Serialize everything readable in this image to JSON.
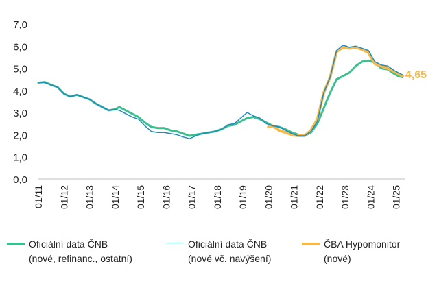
{
  "chart_data": {
    "type": "line",
    "title": "",
    "xlabel": "",
    "ylabel": "",
    "ylim": [
      0,
      7
    ],
    "y_ticks": [
      "0,0",
      "1,0",
      "2,0",
      "3,0",
      "4,0",
      "5,0",
      "6,0",
      "7,0"
    ],
    "x_ticks": [
      "01/11",
      "01/12",
      "01/13",
      "01/14",
      "01/15",
      "01/16",
      "01/17",
      "01/18",
      "01/19",
      "01/20",
      "01/21",
      "01/22",
      "01/23",
      "01/24",
      "01/25"
    ],
    "xlim": [
      "2011-01",
      "2025-05"
    ],
    "grid": false,
    "legend_position": "bottom",
    "end_label": "4,65",
    "series": [
      {
        "name": "Oficiální data ČNB (nové, refinanc., ostatní)",
        "color": "#3cbf8e",
        "points": [
          [
            "2011-01",
            4.35
          ],
          [
            "2011-04",
            4.38
          ],
          [
            "2011-07",
            4.25
          ],
          [
            "2011-10",
            4.15
          ],
          [
            "2012-01",
            3.85
          ],
          [
            "2012-04",
            3.72
          ],
          [
            "2012-07",
            3.8
          ],
          [
            "2012-10",
            3.7
          ],
          [
            "2013-01",
            3.6
          ],
          [
            "2013-04",
            3.4
          ],
          [
            "2013-07",
            3.25
          ],
          [
            "2013-10",
            3.1
          ],
          [
            "2014-01",
            3.15
          ],
          [
            "2014-03",
            3.25
          ],
          [
            "2014-06",
            3.1
          ],
          [
            "2014-09",
            2.95
          ],
          [
            "2014-12",
            2.8
          ],
          [
            "2015-03",
            2.55
          ],
          [
            "2015-06",
            2.35
          ],
          [
            "2015-09",
            2.3
          ],
          [
            "2015-12",
            2.3
          ],
          [
            "2016-03",
            2.2
          ],
          [
            "2016-06",
            2.15
          ],
          [
            "2016-09",
            2.05
          ],
          [
            "2016-12",
            1.95
          ],
          [
            "2017-03",
            2.0
          ],
          [
            "2017-06",
            2.05
          ],
          [
            "2017-09",
            2.1
          ],
          [
            "2017-12",
            2.15
          ],
          [
            "2018-03",
            2.25
          ],
          [
            "2018-06",
            2.4
          ],
          [
            "2018-09",
            2.45
          ],
          [
            "2018-12",
            2.6
          ],
          [
            "2019-03",
            2.75
          ],
          [
            "2019-06",
            2.8
          ],
          [
            "2019-09",
            2.7
          ],
          [
            "2019-12",
            2.55
          ],
          [
            "2020-03",
            2.4
          ],
          [
            "2020-06",
            2.35
          ],
          [
            "2020-09",
            2.25
          ],
          [
            "2020-12",
            2.1
          ],
          [
            "2021-03",
            2.0
          ],
          [
            "2021-06",
            1.95
          ],
          [
            "2021-09",
            2.1
          ],
          [
            "2021-12",
            2.5
          ],
          [
            "2022-03",
            3.2
          ],
          [
            "2022-06",
            3.9
          ],
          [
            "2022-09",
            4.5
          ],
          [
            "2022-12",
            4.65
          ],
          [
            "2023-03",
            4.8
          ],
          [
            "2023-06",
            5.1
          ],
          [
            "2023-09",
            5.3
          ],
          [
            "2023-12",
            5.35
          ],
          [
            "2024-03",
            5.25
          ],
          [
            "2024-06",
            5.0
          ],
          [
            "2024-09",
            4.95
          ],
          [
            "2024-12",
            4.75
          ],
          [
            "2025-02",
            4.65
          ],
          [
            "2025-04",
            4.6
          ]
        ]
      },
      {
        "name": "Oficiální data ČNB (nové vč. navýšení)",
        "color": "#1e8bc3",
        "points": [
          [
            "2011-01",
            4.38
          ],
          [
            "2011-04",
            4.35
          ],
          [
            "2011-07",
            4.25
          ],
          [
            "2011-10",
            4.15
          ],
          [
            "2012-01",
            3.85
          ],
          [
            "2012-04",
            3.72
          ],
          [
            "2012-07",
            3.8
          ],
          [
            "2012-10",
            3.7
          ],
          [
            "2013-01",
            3.6
          ],
          [
            "2013-04",
            3.4
          ],
          [
            "2013-07",
            3.25
          ],
          [
            "2013-10",
            3.1
          ],
          [
            "2014-01",
            3.15
          ],
          [
            "2014-03",
            3.1
          ],
          [
            "2014-06",
            2.95
          ],
          [
            "2014-09",
            2.8
          ],
          [
            "2014-12",
            2.7
          ],
          [
            "2015-03",
            2.4
          ],
          [
            "2015-06",
            2.15
          ],
          [
            "2015-09",
            2.1
          ],
          [
            "2015-12",
            2.1
          ],
          [
            "2016-03",
            2.05
          ],
          [
            "2016-06",
            2.0
          ],
          [
            "2016-09",
            1.9
          ],
          [
            "2016-12",
            1.82
          ],
          [
            "2017-03",
            1.95
          ],
          [
            "2017-06",
            2.05
          ],
          [
            "2017-09",
            2.1
          ],
          [
            "2017-12",
            2.15
          ],
          [
            "2018-03",
            2.25
          ],
          [
            "2018-06",
            2.45
          ],
          [
            "2018-09",
            2.5
          ],
          [
            "2018-12",
            2.75
          ],
          [
            "2019-03",
            3.0
          ],
          [
            "2019-06",
            2.85
          ],
          [
            "2019-09",
            2.75
          ],
          [
            "2019-12",
            2.5
          ],
          [
            "2020-03",
            2.4
          ],
          [
            "2020-06",
            2.35
          ],
          [
            "2020-09",
            2.2
          ],
          [
            "2020-12",
            2.05
          ],
          [
            "2021-03",
            1.95
          ],
          [
            "2021-06",
            1.95
          ],
          [
            "2021-09",
            2.15
          ],
          [
            "2021-12",
            2.6
          ],
          [
            "2022-03",
            3.9
          ],
          [
            "2022-06",
            4.6
          ],
          [
            "2022-09",
            5.8
          ],
          [
            "2022-12",
            6.05
          ],
          [
            "2023-03",
            5.95
          ],
          [
            "2023-06",
            6.0
          ],
          [
            "2023-09",
            5.9
          ],
          [
            "2023-12",
            5.8
          ],
          [
            "2024-03",
            5.3
          ],
          [
            "2024-06",
            5.15
          ],
          [
            "2024-09",
            5.1
          ],
          [
            "2024-12",
            4.9
          ],
          [
            "2025-02",
            4.8
          ],
          [
            "2025-04",
            4.7
          ]
        ]
      },
      {
        "name": "ČBA Hypomonitor (nové)",
        "color": "#f5b84a",
        "points": [
          [
            "2020-01",
            2.35
          ],
          [
            "2020-03",
            2.4
          ],
          [
            "2020-06",
            2.2
          ],
          [
            "2020-09",
            2.1
          ],
          [
            "2020-12",
            2.0
          ],
          [
            "2021-03",
            1.95
          ],
          [
            "2021-06",
            1.95
          ],
          [
            "2021-09",
            2.2
          ],
          [
            "2021-12",
            2.7
          ],
          [
            "2022-03",
            3.9
          ],
          [
            "2022-06",
            4.6
          ],
          [
            "2022-09",
            5.75
          ],
          [
            "2022-12",
            5.95
          ],
          [
            "2023-03",
            5.9
          ],
          [
            "2023-06",
            5.95
          ],
          [
            "2023-09",
            5.85
          ],
          [
            "2023-12",
            5.7
          ],
          [
            "2024-03",
            5.2
          ],
          [
            "2024-06",
            5.1
          ],
          [
            "2024-09",
            5.0
          ],
          [
            "2024-12",
            4.85
          ],
          [
            "2025-02",
            4.75
          ],
          [
            "2025-04",
            4.65
          ]
        ]
      }
    ]
  },
  "legend": {
    "items": [
      {
        "line1": "Oficiální data ČNB",
        "line2": "(nové, refinanc., ostatní)",
        "color": "#3cbf8e"
      },
      {
        "line1": "Oficiální data ČNB",
        "line2": "(nové vč. navýšení)",
        "color": "#1e8bc3"
      },
      {
        "line1": "ČBA Hypomonitor",
        "line2": "(nové)",
        "color": "#f5b84a"
      }
    ]
  }
}
